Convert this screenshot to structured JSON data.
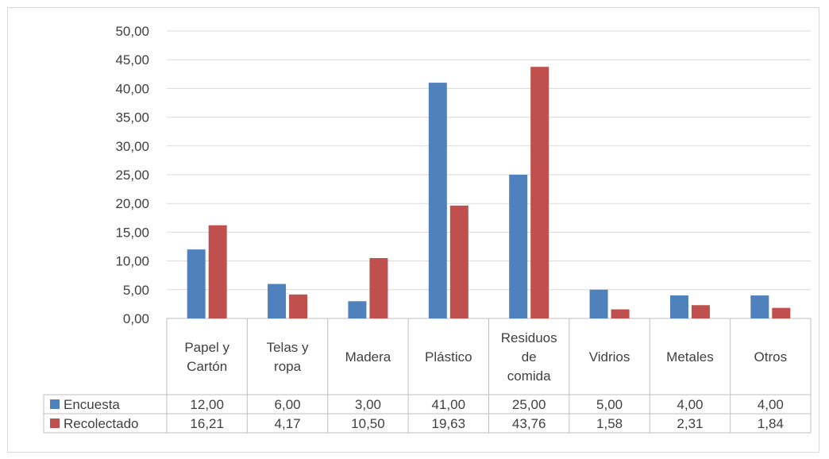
{
  "chart_data": {
    "type": "bar",
    "title": "",
    "xlabel": "",
    "ylabel": "",
    "ylim": [
      0,
      50
    ],
    "yticks": [
      "0,00",
      "5,00",
      "10,00",
      "15,00",
      "20,00",
      "25,00",
      "30,00",
      "35,00",
      "40,00",
      "45,00",
      "50,00"
    ],
    "grid": true,
    "legend": "data-table",
    "categories": [
      [
        "Papel y",
        "Cartón"
      ],
      [
        "Telas y",
        "ropa"
      ],
      [
        "Madera"
      ],
      [
        "Plástico"
      ],
      [
        "Residuos",
        "de",
        "comida"
      ],
      [
        "Vidrios"
      ],
      [
        "Metales"
      ],
      [
        "Otros"
      ]
    ],
    "series": [
      {
        "name": "Encuesta",
        "color": "#4f81bd",
        "values": [
          12.0,
          6.0,
          3.0,
          41.0,
          25.0,
          5.0,
          4.0,
          4.0
        ],
        "labels": [
          "12,00",
          "6,00",
          "3,00",
          "41,00",
          "25,00",
          "5,00",
          "4,00",
          "4,00"
        ]
      },
      {
        "name": "Recolectado",
        "color": "#c0504d",
        "values": [
          16.21,
          4.17,
          10.5,
          19.63,
          43.76,
          1.58,
          2.31,
          1.84
        ],
        "labels": [
          "16,21",
          "4,17",
          "10,50",
          "19,63",
          "43,76",
          "1,58",
          "2,31",
          "1,84"
        ]
      }
    ]
  }
}
